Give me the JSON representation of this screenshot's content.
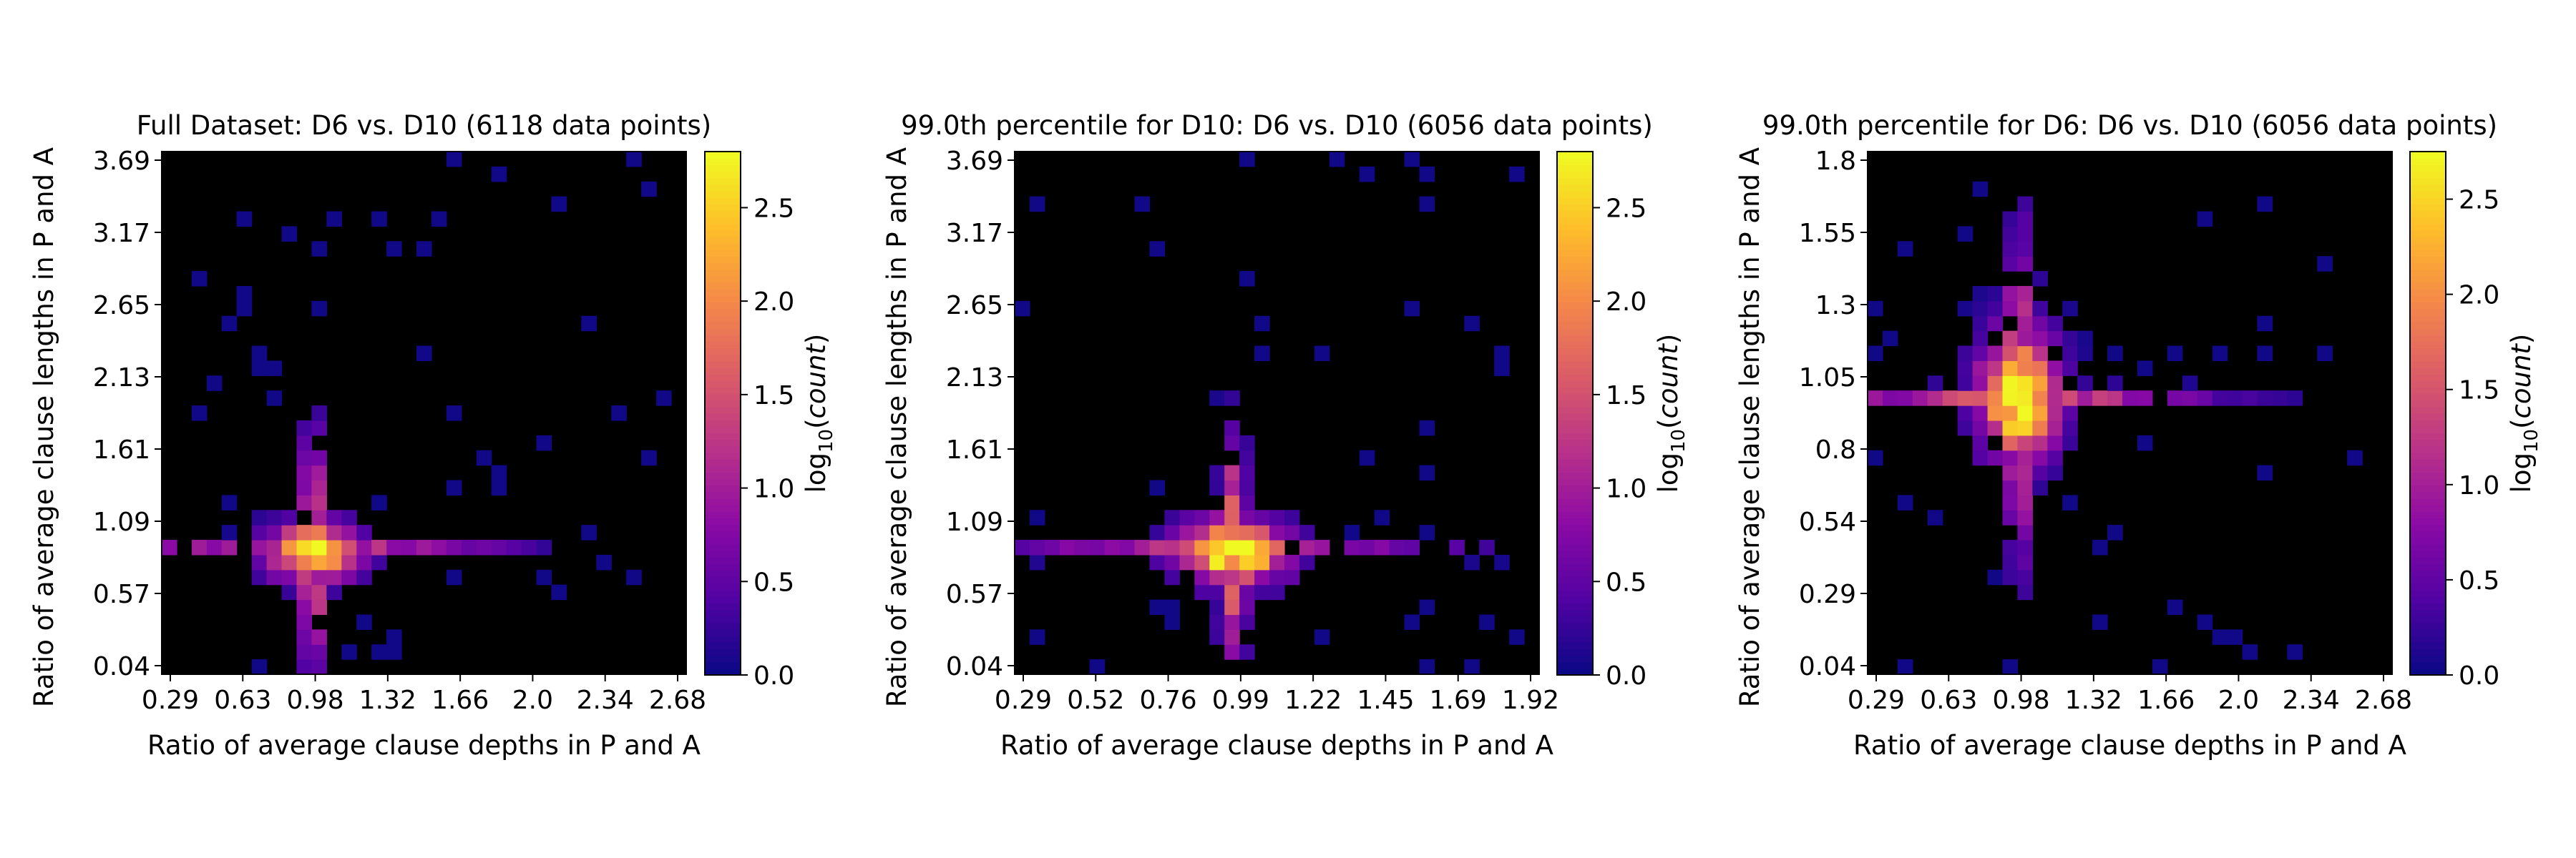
{
  "colormap": [
    "#0d0887",
    "#5302a3",
    "#8b0aa5",
    "#b83289",
    "#db5c68",
    "#f48849",
    "#febd2a",
    "#f0f921"
  ],
  "background_color": "#000000",
  "chart_data": [
    {
      "type": "heatmap",
      "title": "Full Dataset: D6 vs. D10 (6118 data points)",
      "xlabel": "Ratio of average clause depths in P and A",
      "ylabel": "Ratio of average clause lengths in P and A",
      "xticks": [
        "0.29",
        "0.63",
        "0.98",
        "1.32",
        "1.66",
        "2.0",
        "2.34",
        "2.68"
      ],
      "yticks": [
        "0.04",
        "0.57",
        "1.09",
        "1.61",
        "2.13",
        "2.65",
        "3.17",
        "3.69"
      ],
      "xlim": [
        0.29,
        2.68
      ],
      "ylim": [
        0.04,
        3.69
      ],
      "bins": 35,
      "colorbar": {
        "label": "log10(count)",
        "ticks": [
          "0.0",
          "0.5",
          "1.0",
          "1.5",
          "2.0",
          "2.5"
        ],
        "range": [
          0,
          2.8
        ]
      },
      "peak": {
        "x": 0.98,
        "y": 0.9,
        "log10_count": 2.8
      },
      "spread": {
        "core_x": 0.14,
        "core_y": 0.14,
        "h_x": 0.6,
        "h_y": 0.04,
        "v_x": 0.04,
        "v_y": 0.55
      }
    },
    {
      "type": "heatmap",
      "title": "99.0th percentile for D10: D6 vs. D10 (6056 data points)",
      "xlabel": "Ratio of average clause depths in P and A",
      "ylabel": "Ratio of average clause lengths in P and A",
      "xticks": [
        "0.29",
        "0.52",
        "0.76",
        "0.99",
        "1.22",
        "1.45",
        "1.69",
        "1.92"
      ],
      "yticks": [
        "0.04",
        "0.57",
        "1.09",
        "1.61",
        "2.13",
        "2.65",
        "3.17",
        "3.69"
      ],
      "xlim": [
        0.29,
        1.92
      ],
      "ylim": [
        0.04,
        3.69
      ],
      "bins": 35,
      "colorbar": {
        "label": "log10(count)",
        "ticks": [
          "0.0",
          "0.5",
          "1.0",
          "1.5",
          "2.0",
          "2.5"
        ],
        "range": [
          0,
          2.8
        ]
      },
      "peak": {
        "x": 0.97,
        "y": 0.9,
        "log10_count": 2.8
      },
      "spread": {
        "core_x": 0.12,
        "core_y": 0.15,
        "h_x": 0.45,
        "h_y": 0.04,
        "v_x": 0.03,
        "v_y": 0.55
      }
    },
    {
      "type": "heatmap",
      "title": "99.0th percentile for D6: D6 vs. D10 (6056 data points)",
      "xlabel": "Ratio of average clause depths in P and A",
      "ylabel": "Ratio of average clause lengths in P and A",
      "xticks": [
        "0.29",
        "0.63",
        "0.98",
        "1.32",
        "1.66",
        "2.0",
        "2.34",
        "2.68"
      ],
      "yticks": [
        "0.04",
        "0.29",
        "0.54",
        "0.8",
        "1.05",
        "1.3",
        "1.55",
        "1.8"
      ],
      "xlim": [
        0.29,
        2.68
      ],
      "ylim": [
        0.04,
        1.8
      ],
      "bins": 35,
      "colorbar": {
        "label": "log10(count)",
        "ticks": [
          "0.0",
          "0.5",
          "1.0",
          "1.5",
          "2.0",
          "2.5"
        ],
        "range": [
          0,
          2.75
        ]
      },
      "peak": {
        "x": 0.98,
        "y": 0.98,
        "log10_count": 2.75
      },
      "spread": {
        "core_x": 0.12,
        "core_y": 0.15,
        "h_x": 0.6,
        "h_y": 0.02,
        "v_x": 0.05,
        "v_y": 0.35
      }
    }
  ]
}
